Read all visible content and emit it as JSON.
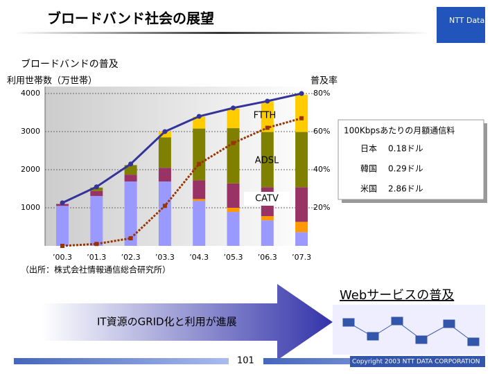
{
  "header": {
    "title": "ブロードバンド社会の展望",
    "logo": "NTT Data"
  },
  "chart_data": {
    "type": "bar",
    "title": "ブロードバンドの普及",
    "y_label": "利用世帯数（万世帯）",
    "y2_label": "普及率",
    "source": "（出所：株式会社情報通信総合研究所）",
    "categories": [
      "’00.3",
      "’01.3",
      "’02.3",
      "’03.3",
      "’04.3",
      "’05.3",
      "’06.3",
      "’07.3"
    ],
    "series": [
      {
        "color": "#9999ff",
        "values": [
          1050,
          1310,
          1690,
          1690,
          1180,
          890,
          670,
          360
        ]
      },
      {
        "color": "#ff9900",
        "values": [
          0,
          0,
          0,
          0,
          50,
          110,
          110,
          270
        ]
      },
      {
        "name": "CATV",
        "color": "#993366",
        "values": [
          50,
          130,
          180,
          360,
          490,
          640,
          760,
          910
        ]
      },
      {
        "name": "ADSL",
        "color": "#808000",
        "values": [
          0,
          90,
          250,
          800,
          1360,
          1450,
          1450,
          1450
        ]
      },
      {
        "name": "FTTH",
        "color": "#ffcc00",
        "values": [
          0,
          0,
          0,
          150,
          310,
          510,
          800,
          980
        ]
      },
      {
        "type": "line",
        "color": "#333399",
        "values": [
          1130,
          1550,
          2150,
          3000,
          3400,
          3620,
          3800,
          4000
        ]
      },
      {
        "type": "line",
        "axis": "y2",
        "color": "#993300",
        "values": [
          0,
          1,
          4,
          21,
          43,
          54,
          62,
          67
        ]
      }
    ],
    "ylim": [
      0,
      4000
    ],
    "yticks": [
      1000,
      2000,
      3000,
      4000
    ],
    "y2lim": [
      0,
      80
    ],
    "y2ticks": [
      {
        "value": 20,
        "label": "20%"
      },
      {
        "value": 40,
        "label": "40%"
      },
      {
        "value": 60,
        "label": "60%"
      },
      {
        "value": 80,
        "label": "80%"
      }
    ],
    "grid": true
  },
  "price_box": {
    "title": "100Kbpsあたりの月額通信料",
    "rows": [
      [
        "日本",
        "0.18ドル"
      ],
      [
        "韓国",
        "0.29ドル"
      ],
      [
        "米国",
        "2.86ドル"
      ]
    ]
  },
  "web": {
    "title": "Webサービスの普及",
    "arrow_text": "IT資源のGRID化と利用が進展"
  },
  "footer": {
    "page": "101",
    "copyright": "Copyright 2003 NTT DATA CORPORATION"
  }
}
